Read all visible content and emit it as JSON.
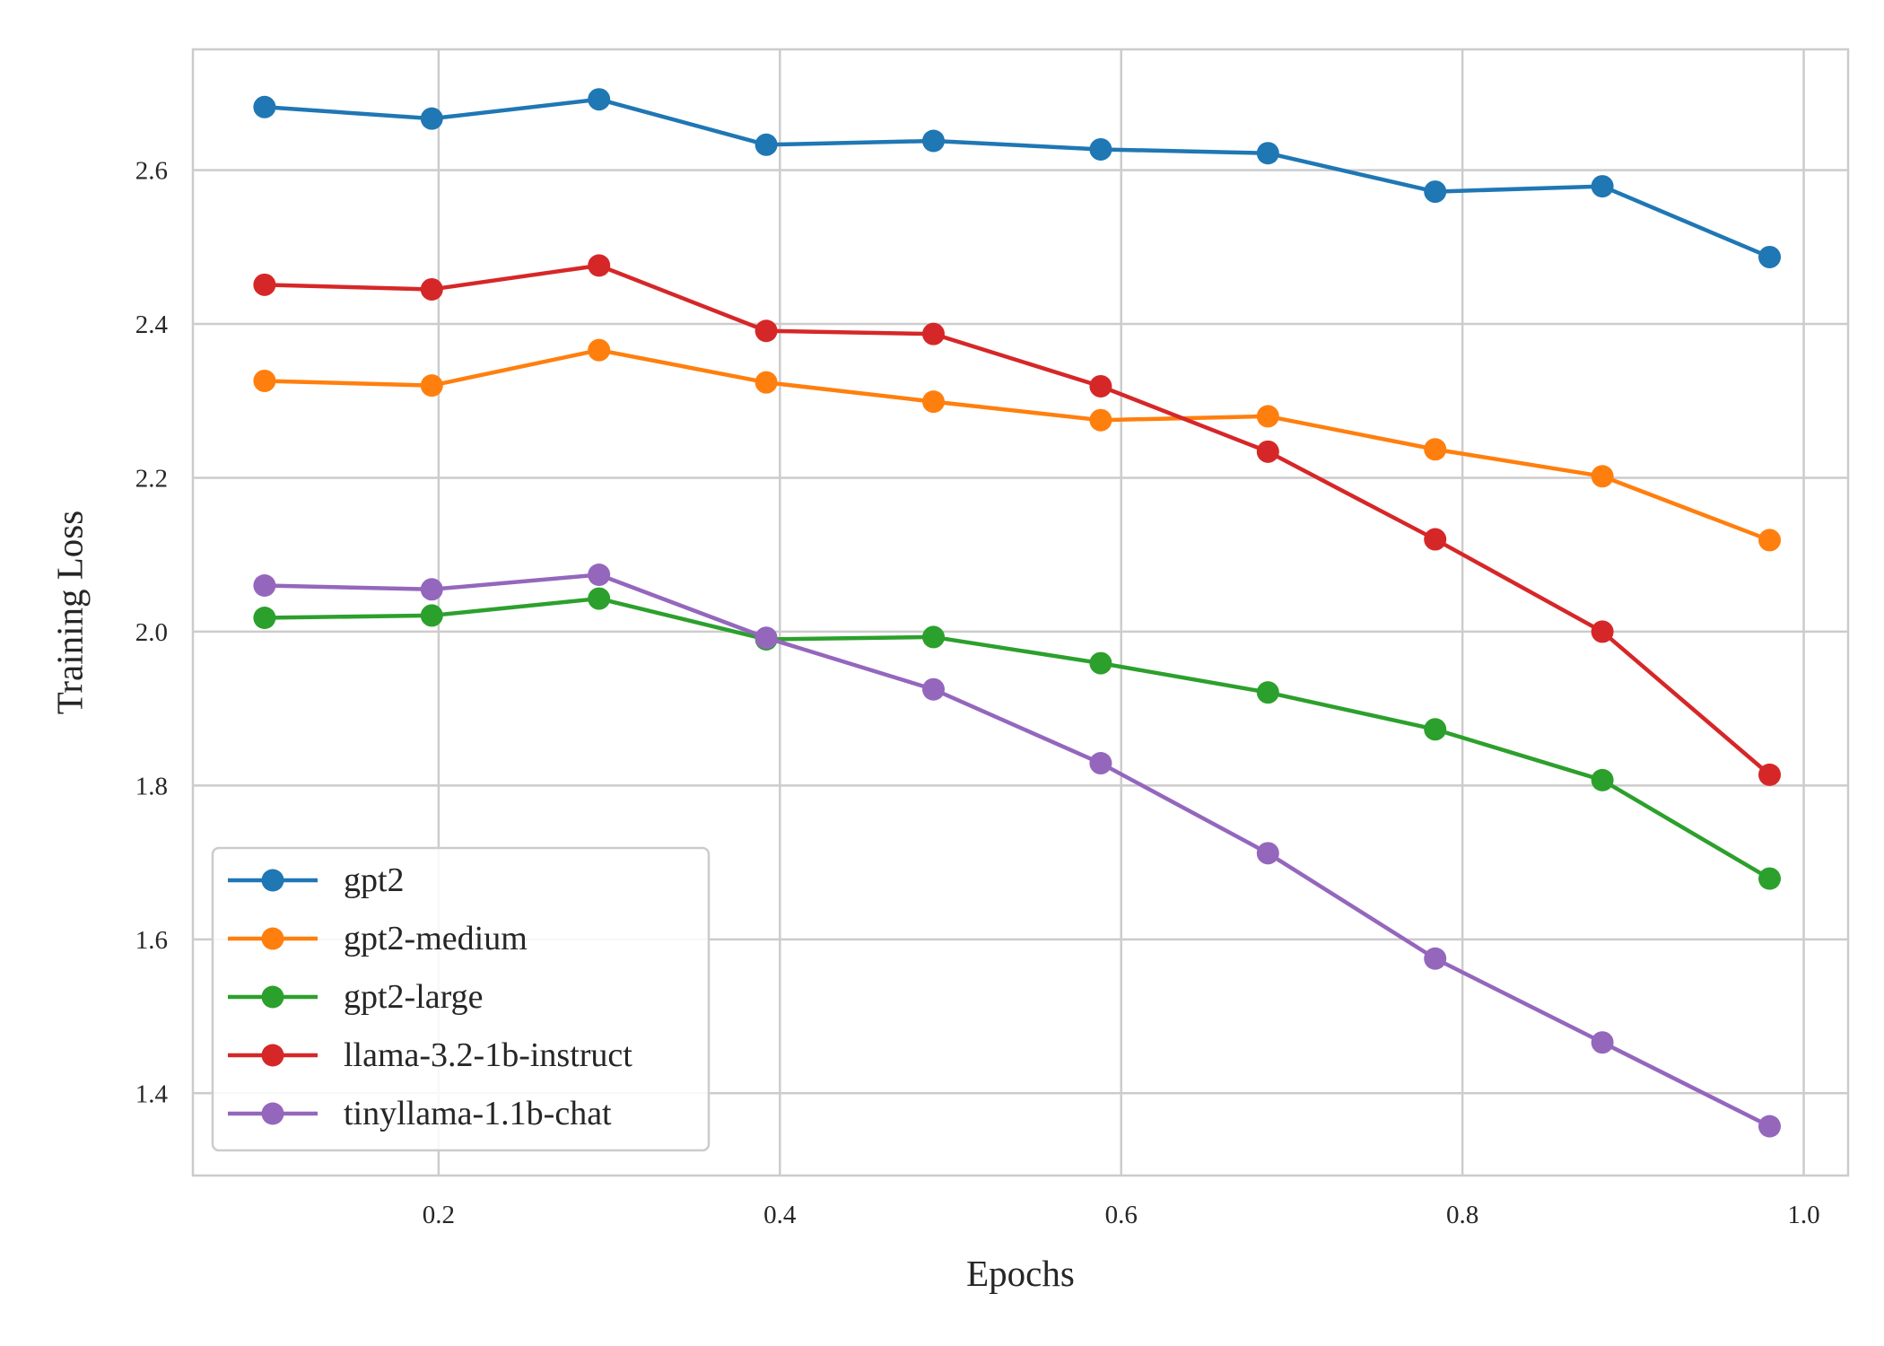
{
  "chart_data": {
    "type": "line",
    "title": "",
    "xlabel": "Epochs",
    "ylabel": "Training Loss",
    "xlim": [
      0.056,
      1.026
    ],
    "ylim": [
      1.293,
      2.757
    ],
    "xticks": [
      "0.2",
      "0.4",
      "0.6",
      "0.8",
      "1.0"
    ],
    "xtick_values": [
      0.2,
      0.4,
      0.6,
      0.8,
      1.0
    ],
    "yticks": [
      "1.4",
      "1.6",
      "1.8",
      "2.0",
      "2.2",
      "2.4",
      "2.6"
    ],
    "ytick_values": [
      1.4,
      1.6,
      1.8,
      2.0,
      2.2,
      2.4,
      2.6
    ],
    "grid": true,
    "legend_position": "lower-left",
    "x": [
      0.098,
      0.196,
      0.294,
      0.392,
      0.49,
      0.588,
      0.686,
      0.784,
      0.882,
      0.98
    ],
    "series": [
      {
        "name": "gpt2",
        "color": "#1f77b4",
        "values": [
          2.682,
          2.667,
          2.692,
          2.633,
          2.638,
          2.627,
          2.622,
          2.572,
          2.579,
          2.487
        ]
      },
      {
        "name": "gpt2-medium",
        "color": "#ff7f0e",
        "values": [
          2.326,
          2.32,
          2.366,
          2.324,
          2.299,
          2.275,
          2.28,
          2.237,
          2.202,
          2.119
        ]
      },
      {
        "name": "gpt2-large",
        "color": "#2ca02c",
        "values": [
          2.018,
          2.021,
          2.043,
          1.99,
          1.993,
          1.959,
          1.921,
          1.873,
          1.807,
          1.679
        ]
      },
      {
        "name": "llama-3.2-1b-instruct",
        "color": "#d62728",
        "values": [
          2.451,
          2.445,
          2.476,
          2.391,
          2.387,
          2.319,
          2.234,
          2.12,
          2.0,
          1.814
        ]
      },
      {
        "name": "tinyllama-1.1b-chat",
        "color": "#9467bd",
        "values": [
          2.06,
          2.055,
          2.074,
          1.992,
          1.925,
          1.829,
          1.712,
          1.575,
          1.466,
          1.357
        ]
      }
    ]
  }
}
